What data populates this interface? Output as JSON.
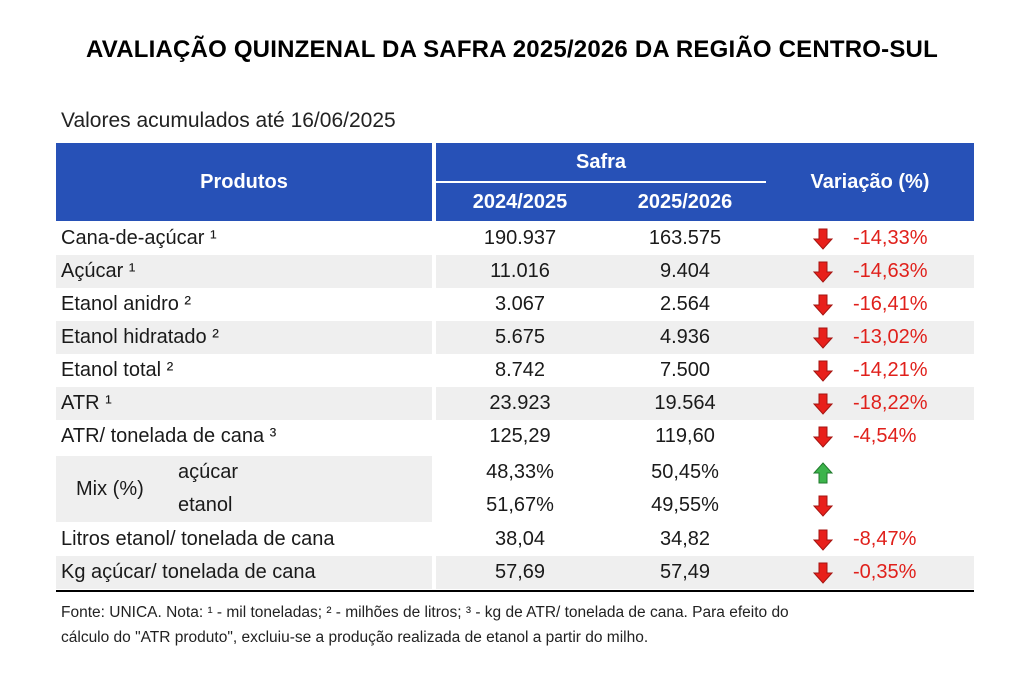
{
  "title": "AVALIAÇÃO QUINZENAL DA SAFRA 2025/2026 DA REGIÃO CENTRO-SUL",
  "subtitle": "Valores acumulados até 16/06/2025",
  "header": {
    "produtos": "Produtos",
    "safra": "Safra",
    "col1": "2024/2025",
    "col2": "2025/2026",
    "variacao": "Variação (%)"
  },
  "rows": [
    {
      "label": "Cana-de-açúcar ¹",
      "v1": "190.937",
      "v2": "163.575",
      "dir": "down",
      "pct": "-14,33%"
    },
    {
      "label": "Açúcar ¹",
      "v1": "11.016",
      "v2": "9.404",
      "dir": "down",
      "pct": "-14,63%"
    },
    {
      "label": "Etanol anidro ²",
      "v1": "3.067",
      "v2": "2.564",
      "dir": "down",
      "pct": "-16,41%"
    },
    {
      "label": "Etanol hidratado ²",
      "v1": "5.675",
      "v2": "4.936",
      "dir": "down",
      "pct": "-13,02%"
    },
    {
      "label": "Etanol total ²",
      "v1": "8.742",
      "v2": "7.500",
      "dir": "down",
      "pct": "-14,21%"
    },
    {
      "label": "ATR ¹",
      "v1": "23.923",
      "v2": "19.564",
      "dir": "down",
      "pct": "-18,22%"
    },
    {
      "label": "ATR/ tonelada de cana ³",
      "v1": "125,29",
      "v2": "119,60",
      "dir": "down",
      "pct": "-4,54%"
    }
  ],
  "mix": {
    "label": "Mix (%)",
    "acucar": {
      "label": "açúcar",
      "v1": "48,33%",
      "v2": "50,45%",
      "dir": "up"
    },
    "etanol": {
      "label": "etanol",
      "v1": "51,67%",
      "v2": "49,55%",
      "dir": "down"
    }
  },
  "rows2": [
    {
      "label": "Litros etanol/ tonelada de cana",
      "v1": "38,04",
      "v2": "34,82",
      "dir": "down",
      "pct": "-8,47%"
    },
    {
      "label": "Kg açúcar/ tonelada de cana",
      "v1": "57,69",
      "v2": "57,49",
      "dir": "down",
      "pct": "-0,35%"
    }
  ],
  "footnote_line1": "Fonte: UNICA. Nota: ¹ - mil toneladas; ² - milhões de litros; ³ - kg de ATR/ tonelada de cana. Para efeito do",
  "footnote_line2": "cálculo do \"ATR produto\", excluiu-se a produção realizada de etanol a partir do milho.",
  "colors": {
    "header_bg": "#2751b7",
    "shade": "#efefef",
    "negative": "#e0201b",
    "arrow_down": "#e8201b",
    "arrow_up": "#3cb44b"
  },
  "icons": {
    "down": "red-down-arrow-icon",
    "up": "green-up-arrow-icon"
  }
}
